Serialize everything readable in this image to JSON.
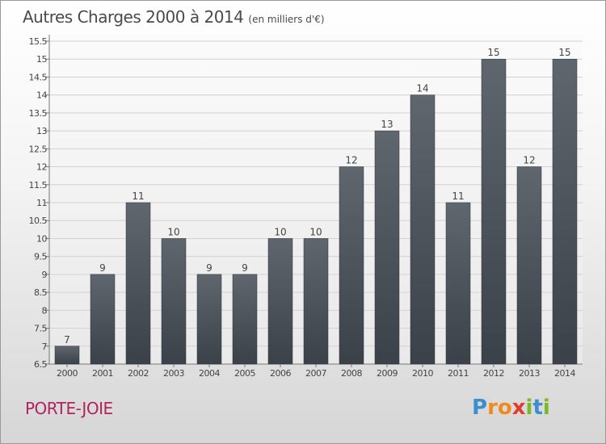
{
  "title": "Autres Charges 2000 à 2014",
  "subtitle": "(en milliers d'€)",
  "commune": "PORTE-JOIE",
  "logo": {
    "text": "Proxiti",
    "letters": [
      {
        "ch": "P",
        "color": "#3b8fd1"
      },
      {
        "ch": "r",
        "color": "#f08a1c"
      },
      {
        "ch": "o",
        "color": "#f08a1c"
      },
      {
        "ch": "x",
        "color": "#e33b2f"
      },
      {
        "ch": "i",
        "color": "#7ab829"
      },
      {
        "ch": "t",
        "color": "#3b8fd1"
      },
      {
        "ch": "i",
        "color": "#7ab829"
      }
    ]
  },
  "chart_data": {
    "type": "bar",
    "categories": [
      "2000",
      "2001",
      "2002",
      "2003",
      "2004",
      "2005",
      "2006",
      "2007",
      "2008",
      "2009",
      "2010",
      "2011",
      "2012",
      "2013",
      "2014"
    ],
    "values": [
      7,
      9,
      11,
      10,
      9,
      9,
      10,
      10,
      12,
      13,
      14,
      11,
      15,
      12,
      15
    ],
    "data_labels": [
      "7",
      "9",
      "11",
      "10",
      "9",
      "9",
      "10",
      "10",
      "12",
      "13",
      "14",
      "11",
      "15",
      "12",
      "15"
    ],
    "ylim": [
      6.5,
      15.5
    ],
    "yticks": [
      "6.5",
      "7",
      "7.5",
      "8",
      "8.5",
      "9",
      "9.5",
      "10",
      "10.5",
      "11",
      "11.5",
      "12",
      "12.5",
      "13",
      "13.5",
      "14",
      "14.5",
      "15",
      "15.5"
    ],
    "grid": true,
    "bar_color": "#3a4149",
    "bar_color_light": "#5f666e"
  }
}
